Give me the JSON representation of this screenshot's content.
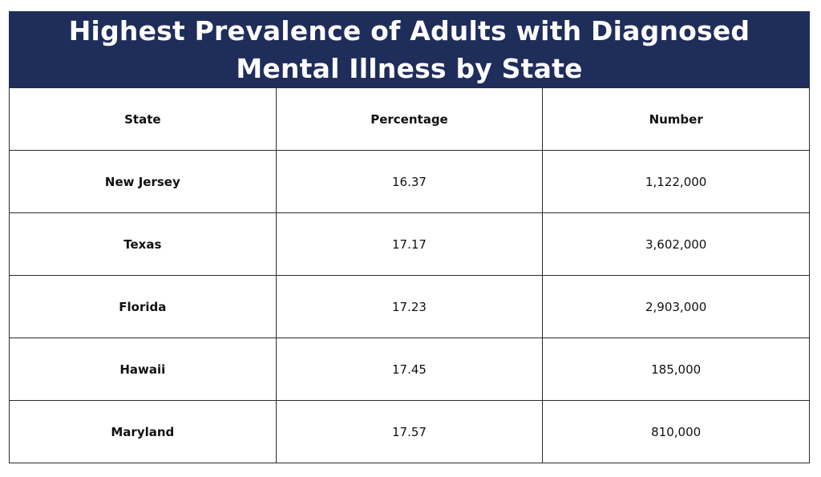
{
  "title": "Highest Prevalence of Adults with Diagnosed Mental Illness by State",
  "colors": {
    "title_background": "#1f2d5a",
    "title_text": "#ffffff",
    "grid_lines": "#2a2a2a"
  },
  "chart_data": {
    "type": "table",
    "title": "Highest Prevalence of Adults with Diagnosed Mental Illness by State",
    "columns": [
      "State",
      "Percentage",
      "Number"
    ],
    "rows": [
      [
        "New Jersey",
        "16.37",
        "1,122,000"
      ],
      [
        "Texas",
        "17.17",
        "3,602,000"
      ],
      [
        "Florida",
        "17.23",
        "2,903,000"
      ],
      [
        "Hawaii",
        "17.45",
        "185,000"
      ],
      [
        "Maryland",
        "17.57",
        "810,000"
      ]
    ]
  }
}
